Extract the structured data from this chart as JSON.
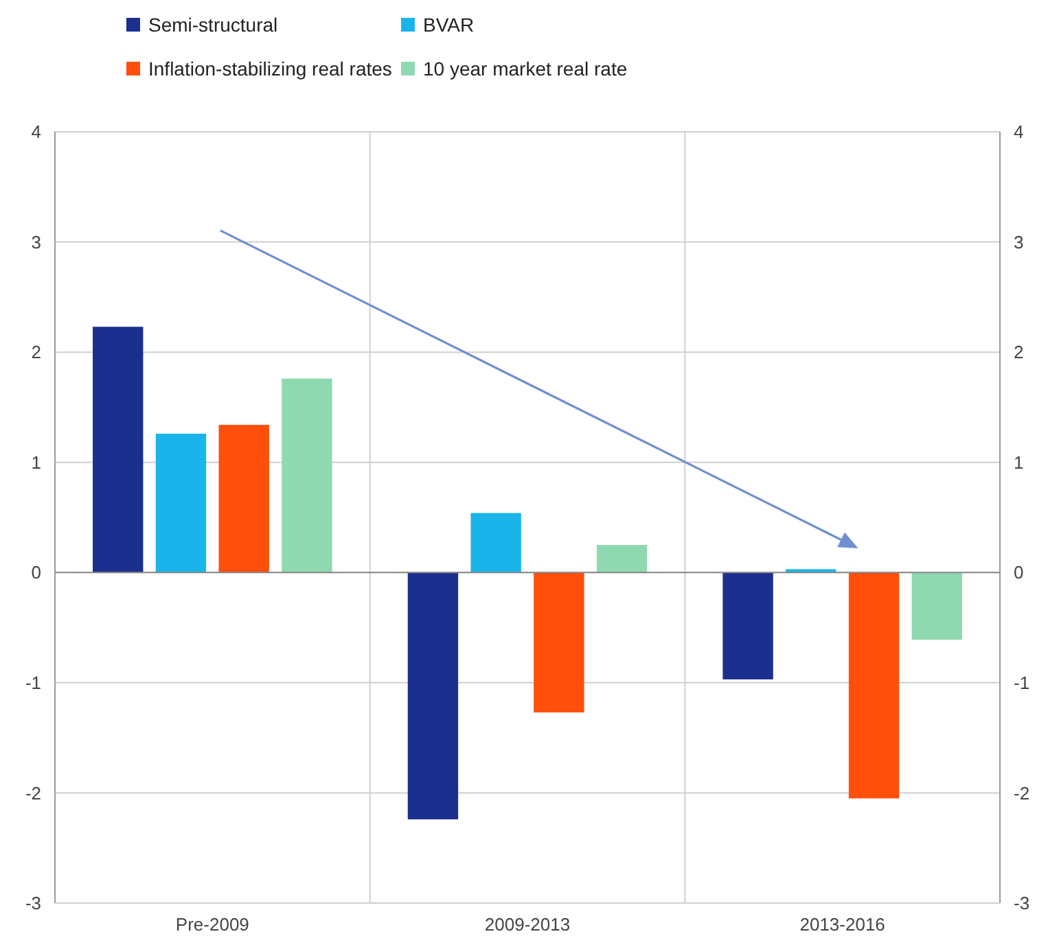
{
  "chart_data": {
    "type": "bar",
    "categories": [
      "Pre-2009",
      "2009-2013",
      "2013-2016"
    ],
    "series": [
      {
        "name": "Semi-structural",
        "color": "#1b2f8e",
        "values": [
          2.23,
          -2.24,
          -0.97
        ]
      },
      {
        "name": "BVAR",
        "color": "#19b5ea",
        "values": [
          1.26,
          0.54,
          0.03
        ]
      },
      {
        "name": "Inflation-stabilizing real rates",
        "color": "#ff4f0a",
        "values": [
          1.34,
          -1.27,
          -2.05
        ]
      },
      {
        "name": "10 year market real rate",
        "color": "#8fd9b0",
        "values": [
          1.76,
          0.25,
          -0.61
        ]
      }
    ],
    "ylim": [
      -3,
      4
    ],
    "yticks": [
      -3,
      -2,
      -1,
      0,
      1,
      2,
      3,
      4
    ],
    "y2lim": [
      -3,
      4
    ],
    "y2ticks": [
      -3,
      -2,
      -1,
      0,
      1,
      2,
      3,
      4
    ],
    "grid": true,
    "legend": "top"
  }
}
